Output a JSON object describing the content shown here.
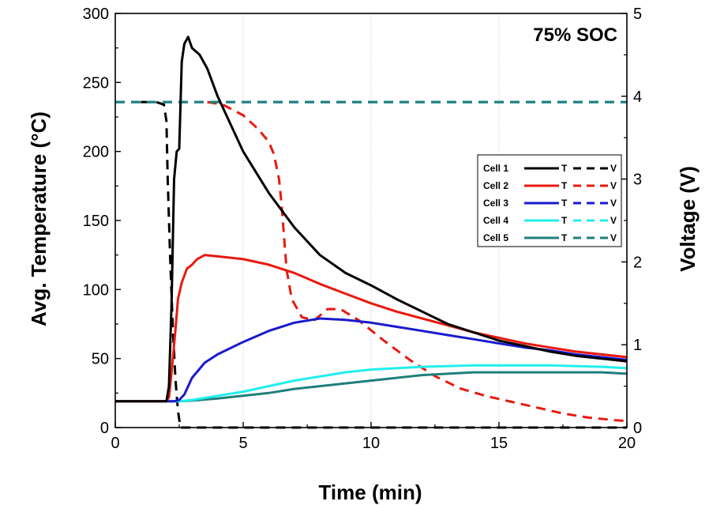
{
  "chart_data": {
    "type": "line",
    "xlabel": "Time (min)",
    "ylabel": "Avg. Temperature (°C)",
    "y2label": "Voltage (V)",
    "annotation": "75% SOC",
    "xlim": [
      0,
      20
    ],
    "ylim": [
      0,
      300
    ],
    "y2lim": [
      0,
      5
    ],
    "x_ticks": [
      0,
      5,
      10,
      15,
      20
    ],
    "y_ticks": [
      0,
      50,
      100,
      150,
      200,
      250,
      300
    ],
    "y2_ticks": [
      0,
      1,
      2,
      3,
      4,
      5
    ],
    "grid": "vertical dotted",
    "legend_position": "right",
    "legend_temp_label": "T",
    "legend_volt_label": "V",
    "series": [
      {
        "name": "Cell 1",
        "color": "#000000",
        "temperature": [
          [
            0,
            19
          ],
          [
            2.0,
            19
          ],
          [
            2.1,
            30
          ],
          [
            2.2,
            90
          ],
          [
            2.3,
            180
          ],
          [
            2.4,
            200
          ],
          [
            2.5,
            202
          ],
          [
            2.6,
            265
          ],
          [
            2.7,
            278
          ],
          [
            2.85,
            283
          ],
          [
            3.0,
            275
          ],
          [
            3.3,
            270
          ],
          [
            3.6,
            260
          ],
          [
            4,
            240
          ],
          [
            5,
            200
          ],
          [
            6,
            170
          ],
          [
            7,
            145
          ],
          [
            8,
            125
          ],
          [
            9,
            112
          ],
          [
            10,
            103
          ],
          [
            11,
            93
          ],
          [
            12,
            84
          ],
          [
            13,
            75
          ],
          [
            14,
            69
          ],
          [
            15,
            63
          ],
          [
            16,
            59
          ],
          [
            17,
            55
          ],
          [
            18,
            52
          ],
          [
            19,
            50
          ],
          [
            20,
            48
          ]
        ],
        "voltage": [
          [
            1.0,
            3.93
          ],
          [
            1.6,
            3.93
          ],
          [
            1.9,
            3.9
          ],
          [
            2.0,
            3.7
          ],
          [
            2.05,
            3.0
          ],
          [
            2.15,
            2.0
          ],
          [
            2.25,
            1.2
          ],
          [
            2.35,
            0.6
          ],
          [
            2.45,
            0.2
          ],
          [
            2.55,
            0
          ],
          [
            20,
            0
          ]
        ]
      },
      {
        "name": "Cell 2",
        "color": "#e8190f",
        "temperature": [
          [
            0,
            19
          ],
          [
            2.0,
            19
          ],
          [
            2.1,
            22
          ],
          [
            2.2,
            40
          ],
          [
            2.35,
            70
          ],
          [
            2.45,
            93
          ],
          [
            2.6,
            105
          ],
          [
            2.8,
            115
          ],
          [
            3.0,
            118
          ],
          [
            3.2,
            122
          ],
          [
            3.5,
            125
          ],
          [
            4,
            124
          ],
          [
            5,
            122
          ],
          [
            6,
            118
          ],
          [
            7,
            112
          ],
          [
            8,
            104
          ],
          [
            9,
            97
          ],
          [
            10,
            90
          ],
          [
            11,
            84
          ],
          [
            12,
            79
          ],
          [
            13,
            74
          ],
          [
            14,
            69
          ],
          [
            15,
            65
          ],
          [
            16,
            61
          ],
          [
            17,
            58
          ],
          [
            18,
            55
          ],
          [
            19,
            53
          ],
          [
            20,
            51
          ]
        ],
        "voltage": [
          [
            3.6,
            3.93
          ],
          [
            4.2,
            3.9
          ],
          [
            5.0,
            3.77
          ],
          [
            5.6,
            3.6
          ],
          [
            6.0,
            3.45
          ],
          [
            6.2,
            3.3
          ],
          [
            6.4,
            3.0
          ],
          [
            6.5,
            2.7
          ],
          [
            6.6,
            2.3
          ],
          [
            6.7,
            1.9
          ],
          [
            6.9,
            1.55
          ],
          [
            7.3,
            1.33
          ],
          [
            7.8,
            1.3
          ],
          [
            8.3,
            1.43
          ],
          [
            8.8,
            1.43
          ],
          [
            9.5,
            1.3
          ],
          [
            10.5,
            1.05
          ],
          [
            11.5,
            0.82
          ],
          [
            12.5,
            0.62
          ],
          [
            13.5,
            0.47
          ],
          [
            14.5,
            0.38
          ],
          [
            15.5,
            0.31
          ],
          [
            16.5,
            0.24
          ],
          [
            17.5,
            0.17
          ],
          [
            18.5,
            0.12
          ],
          [
            19.5,
            0.09
          ],
          [
            20,
            0.08
          ]
        ]
      },
      {
        "name": "Cell 3",
        "color": "#1a1acc",
        "temperature": [
          [
            0,
            19
          ],
          [
            2.3,
            19
          ],
          [
            2.5,
            20
          ],
          [
            2.7,
            24
          ],
          [
            3.0,
            36
          ],
          [
            3.5,
            47
          ],
          [
            4,
            53
          ],
          [
            5,
            62
          ],
          [
            6,
            70
          ],
          [
            7,
            76
          ],
          [
            8,
            79
          ],
          [
            9,
            78
          ],
          [
            10,
            76
          ],
          [
            11,
            73
          ],
          [
            12,
            70
          ],
          [
            13,
            67
          ],
          [
            14,
            64
          ],
          [
            15,
            61
          ],
          [
            16,
            58
          ],
          [
            17,
            56
          ],
          [
            18,
            53
          ],
          [
            19,
            51
          ],
          [
            20,
            49
          ]
        ],
        "voltage": [
          [
            0,
            3.93
          ],
          [
            20,
            3.93
          ]
        ]
      },
      {
        "name": "Cell 4",
        "color": "#22eeee",
        "temperature": [
          [
            0,
            19
          ],
          [
            2.5,
            19
          ],
          [
            3,
            20
          ],
          [
            4,
            23
          ],
          [
            5,
            26
          ],
          [
            6,
            30
          ],
          [
            7,
            34
          ],
          [
            8,
            37
          ],
          [
            9,
            40
          ],
          [
            10,
            42
          ],
          [
            11,
            43
          ],
          [
            12,
            44
          ],
          [
            13,
            44.5
          ],
          [
            14,
            45
          ],
          [
            15,
            45
          ],
          [
            16,
            45
          ],
          [
            17,
            45
          ],
          [
            18,
            44.5
          ],
          [
            19,
            44
          ],
          [
            20,
            43
          ]
        ],
        "voltage": [
          [
            0,
            3.93
          ],
          [
            20,
            3.93
          ]
        ]
      },
      {
        "name": "Cell 5",
        "color": "#1f7f7a",
        "temperature": [
          [
            0,
            19
          ],
          [
            2.5,
            19
          ],
          [
            3,
            19.5
          ],
          [
            4,
            21
          ],
          [
            5,
            23
          ],
          [
            6,
            25
          ],
          [
            7,
            28
          ],
          [
            8,
            30
          ],
          [
            9,
            32
          ],
          [
            10,
            34
          ],
          [
            11,
            36
          ],
          [
            12,
            38
          ],
          [
            13,
            39
          ],
          [
            14,
            40
          ],
          [
            15,
            40
          ],
          [
            16,
            40
          ],
          [
            17,
            40
          ],
          [
            18,
            40
          ],
          [
            19,
            40
          ],
          [
            20,
            39
          ]
        ],
        "voltage": [
          [
            0,
            3.93
          ],
          [
            20,
            3.93
          ]
        ]
      }
    ]
  }
}
